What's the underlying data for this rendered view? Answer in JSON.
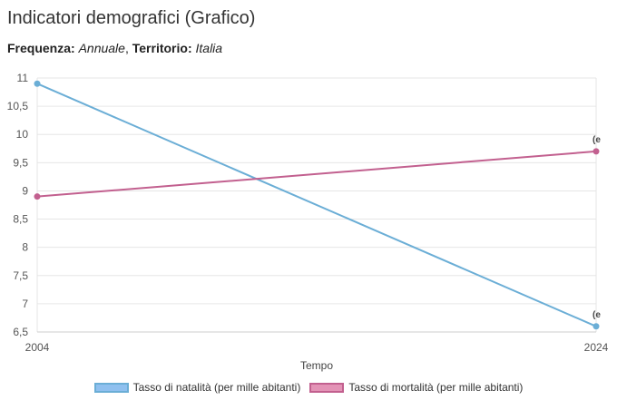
{
  "page": {
    "title": "Indicatori demografici (Grafico)",
    "frequency_label": "Frequenza:",
    "frequency_value": "Annuale",
    "territory_label": "Territorio:",
    "territory_value": "Italia"
  },
  "chart_data": {
    "type": "line",
    "title": "",
    "xlabel": "Tempo",
    "ylabel": "",
    "x": [
      "2004",
      "2024"
    ],
    "ylim": [
      6.5,
      11
    ],
    "yticks": [
      "6,5",
      "7",
      "7,5",
      "8",
      "8,5",
      "9",
      "9,5",
      "10",
      "10,5",
      "11"
    ],
    "grid": true,
    "legend_position": "bottom",
    "series": [
      {
        "name": "Tasso di natalità (per mille abitanti)",
        "values": [
          10.9,
          6.6
        ],
        "color": "#6baed6",
        "fill": "#8fc0ef",
        "end_label": "(e"
      },
      {
        "name": "Tasso di mortalità (per mille abitanti)",
        "values": [
          8.9,
          9.7
        ],
        "color": "#c2608f",
        "fill": "#e393b6",
        "end_label": "(e"
      }
    ]
  }
}
